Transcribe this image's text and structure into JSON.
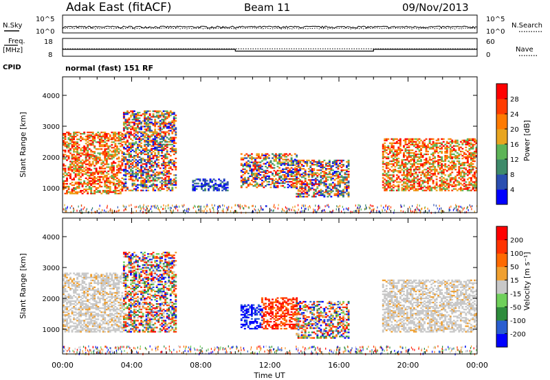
{
  "header": {
    "station": "Adak East (fitACF)",
    "beam": "Beam 11",
    "date": "09/Nov/2013"
  },
  "noise_panel": {
    "left_label": "N.Sky",
    "right_label": "N.Search",
    "left_ticks": [
      "10^5",
      "10^0"
    ],
    "right_ticks": [
      "10^5",
      "10^0"
    ]
  },
  "freq_panel": {
    "left_label": "Freq.",
    "left_units": "[MHz]",
    "right_label": "Nave",
    "left_ticks": [
      "18",
      "8"
    ],
    "right_ticks": [
      "60",
      "0"
    ],
    "cpid_label": "CPID",
    "cpid_text": "normal (fast) 151 RF"
  },
  "chart_data": [
    {
      "type": "line",
      "name": "noise",
      "x_range_hours": [
        0,
        24
      ],
      "y_scale": "log",
      "ylim": [
        1,
        100000
      ],
      "series": [
        {
          "name": "N.Sky",
          "style": "solid",
          "approx_level": 20
        },
        {
          "name": "N.Search",
          "style": "dotted",
          "approx_level": 15
        }
      ]
    },
    {
      "type": "line",
      "name": "frequency",
      "ylim": [
        8,
        18
      ],
      "y2lim": [
        0,
        60
      ],
      "series": [
        {
          "name": "Freq.",
          "style": "solid",
          "x": [
            "00:00",
            "10:00",
            "10:00",
            "18:00",
            "18:00",
            "24:00"
          ],
          "values": [
            11.9,
            11.9,
            10.9,
            10.9,
            11.9,
            11.9
          ]
        },
        {
          "name": "Nave",
          "style": "dotted",
          "x": [
            "00:00",
            "24:00"
          ],
          "values": [
            25,
            25
          ]
        }
      ]
    },
    {
      "type": "heatmap",
      "name": "power",
      "ylabel": "Slant Range [km]",
      "ylim": [
        200,
        4600
      ],
      "yticks": [
        "1000",
        "2000",
        "3000",
        "4000"
      ],
      "colorbar": {
        "label": "Power [dB]",
        "ticks": [
          "4",
          "8",
          "12",
          "16",
          "20",
          "24",
          "28"
        ],
        "range": [
          0,
          30
        ],
        "colors": [
          "#0000ff",
          "#2a4eb0",
          "#3e8a6a",
          "#5db457",
          "#e8a520",
          "#ff7a00",
          "#ff3c00",
          "#ff0000"
        ]
      },
      "regions": [
        {
          "x0": 0,
          "x1": 3.5,
          "y0": 800,
          "y1": 2800,
          "level": "high"
        },
        {
          "x0": 3.5,
          "x1": 6.5,
          "y0": 900,
          "y1": 3500,
          "level": "mixed"
        },
        {
          "x0": 7.5,
          "x1": 9.5,
          "y0": 900,
          "y1": 1300,
          "level": "low"
        },
        {
          "x0": 10.3,
          "x1": 13.5,
          "y0": 1000,
          "y1": 2100,
          "level": "mixed"
        },
        {
          "x0": 13.5,
          "x1": 16.5,
          "y0": 700,
          "y1": 1900,
          "level": "mixed"
        },
        {
          "x0": 18.5,
          "x1": 24,
          "y0": 900,
          "y1": 2600,
          "level": "high"
        }
      ]
    },
    {
      "type": "heatmap",
      "name": "velocity",
      "ylabel": "Slant Range [km]",
      "ylim": [
        200,
        4600
      ],
      "yticks": [
        "1000",
        "2000",
        "3000",
        "4000"
      ],
      "colorbar": {
        "label": "Velocity [m s⁻¹]",
        "ticks": [
          "200",
          "100",
          "50",
          "15",
          "-15",
          "-50",
          "-100",
          "-200"
        ],
        "colors": [
          "#0000ff",
          "#2a5ed0",
          "#2e8c3c",
          "#6fd05a",
          "#c8c8c8",
          "#f0a030",
          "#ff6a00",
          "#ff3300",
          "#ff0000"
        ]
      },
      "regions": [
        {
          "x0": 0,
          "x1": 3.5,
          "y0": 900,
          "y1": 2800,
          "level": "ground"
        },
        {
          "x0": 3.5,
          "x1": 6.5,
          "y0": 900,
          "y1": 3500,
          "level": "mixed"
        },
        {
          "x0": 10.3,
          "x1": 11.5,
          "y0": 1000,
          "y1": 1800,
          "level": "toward"
        },
        {
          "x0": 11.5,
          "x1": 13.5,
          "y0": 1000,
          "y1": 2000,
          "level": "away"
        },
        {
          "x0": 13.5,
          "x1": 16.5,
          "y0": 700,
          "y1": 1900,
          "level": "mixed"
        },
        {
          "x0": 18.5,
          "x1": 24,
          "y0": 900,
          "y1": 2600,
          "level": "ground"
        }
      ]
    }
  ],
  "xaxis": {
    "label": "Time UT",
    "ticks": [
      "00:00",
      "04:00",
      "08:00",
      "12:00",
      "16:00",
      "20:00",
      "00:00"
    ]
  }
}
